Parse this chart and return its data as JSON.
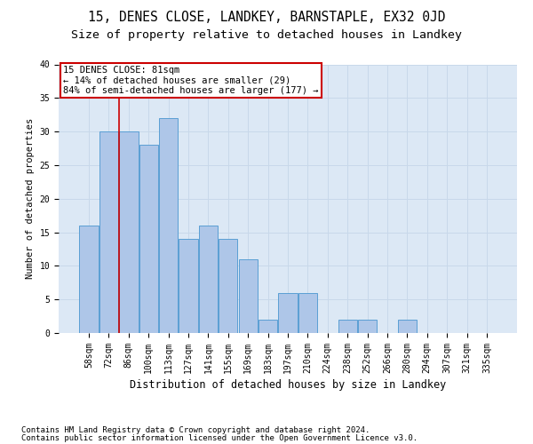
{
  "title": "15, DENES CLOSE, LANDKEY, BARNSTAPLE, EX32 0JD",
  "subtitle": "Size of property relative to detached houses in Landkey",
  "xlabel": "Distribution of detached houses by size in Landkey",
  "ylabel": "Number of detached properties",
  "categories": [
    "58sqm",
    "72sqm",
    "86sqm",
    "100sqm",
    "113sqm",
    "127sqm",
    "141sqm",
    "155sqm",
    "169sqm",
    "183sqm",
    "197sqm",
    "210sqm",
    "224sqm",
    "238sqm",
    "252sqm",
    "266sqm",
    "280sqm",
    "294sqm",
    "307sqm",
    "321sqm",
    "335sqm"
  ],
  "values": [
    16,
    30,
    30,
    28,
    32,
    14,
    16,
    14,
    11,
    2,
    6,
    6,
    0,
    2,
    2,
    0,
    2,
    0,
    0,
    0,
    0
  ],
  "bar_color": "#aec6e8",
  "bar_edge_color": "#5a9fd4",
  "annotation_text_line1": "15 DENES CLOSE: 81sqm",
  "annotation_text_line2": "← 14% of detached houses are smaller (29)",
  "annotation_text_line3": "84% of semi-detached houses are larger (177) →",
  "annotation_box_color": "#ffffff",
  "annotation_box_edge_color": "#cc0000",
  "red_line_color": "#cc0000",
  "grid_color": "#c8d8ea",
  "background_color": "#dce8f5",
  "ylim": [
    0,
    40
  ],
  "yticks": [
    0,
    5,
    10,
    15,
    20,
    25,
    30,
    35,
    40
  ],
  "footer_line1": "Contains HM Land Registry data © Crown copyright and database right 2024.",
  "footer_line2": "Contains public sector information licensed under the Open Government Licence v3.0.",
  "title_fontsize": 10.5,
  "subtitle_fontsize": 9.5,
  "xlabel_fontsize": 8.5,
  "ylabel_fontsize": 7.5,
  "tick_fontsize": 7,
  "annotation_fontsize": 7.5,
  "footer_fontsize": 6.5
}
